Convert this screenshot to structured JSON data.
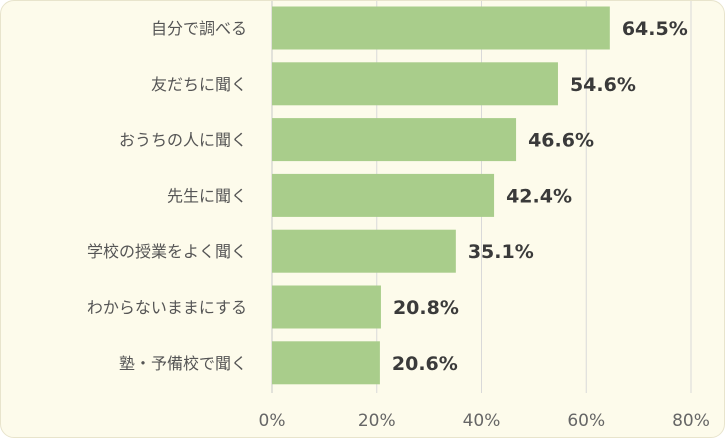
{
  "chart_data": {
    "type": "bar",
    "orientation": "horizontal",
    "categories": [
      "自分で調べる",
      "友だちに聞く",
      "おうちの人に聞く",
      "先生に聞く",
      "学校の授業をよく聞く",
      "わからないままにする",
      "塾・予備校で聞く"
    ],
    "values": [
      64.5,
      54.6,
      46.6,
      42.4,
      35.1,
      20.8,
      20.6
    ],
    "value_labels": [
      "64.5%",
      "54.6%",
      "46.6%",
      "42.4%",
      "35.1%",
      "20.8%",
      "20.6%"
    ],
    "xlim": [
      0,
      80
    ],
    "xticks": [
      0,
      20,
      40,
      60,
      80
    ],
    "xtick_labels": [
      "0%",
      "20%",
      "40%",
      "60%",
      "80%"
    ],
    "grid": true,
    "bar_color": "#a9cd8b",
    "background_color": "#fdfbeb"
  }
}
